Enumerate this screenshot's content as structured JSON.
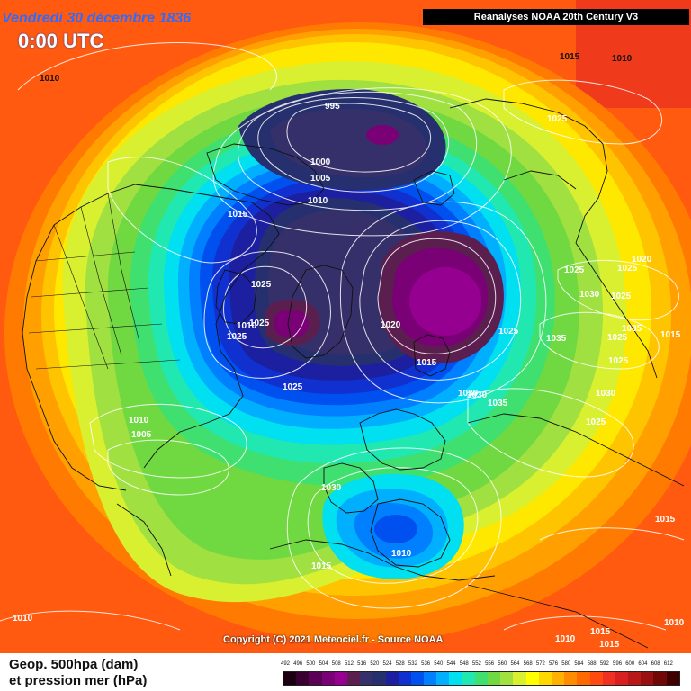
{
  "header": {
    "date_label": "Vendredi 30 décembre 1836",
    "time_label": "0:00 UTC",
    "source_label": "Reanalyses NOAA 20th Century V3"
  },
  "copyright": "Copyright (C) 2021 Meteociel.fr - Source NOAA",
  "legend": {
    "title_line1": "Geop. 500hpa (dam)",
    "title_line2": "et pression mer (hPa)",
    "scale_values": [
      "492",
      "496",
      "500",
      "504",
      "508",
      "512",
      "516",
      "520",
      "524",
      "528",
      "532",
      "536",
      "540",
      "544",
      "548",
      "552",
      "556",
      "560",
      "564",
      "568",
      "572",
      "576",
      "580",
      "584",
      "588",
      "592",
      "596",
      "600",
      "604",
      "608",
      "612"
    ],
    "scale_colors": [
      "#1a0010",
      "#3a0030",
      "#5a0055",
      "#7a0075",
      "#960090",
      "#5a1f4f",
      "#35306a",
      "#26306e",
      "#1c20a0",
      "#1030d0",
      "#0050f0",
      "#0080ff",
      "#00b0ff",
      "#00e0f0",
      "#20e8b0",
      "#40e070",
      "#70d840",
      "#a0e040",
      "#d8f030",
      "#ffff00",
      "#ffd800",
      "#ffb000",
      "#ff8c00",
      "#ff6a00",
      "#ff4a10",
      "#f03020",
      "#d82020",
      "#b81818",
      "#981010",
      "#700808",
      "#400000"
    ]
  },
  "isobar_labels": [
    {
      "text": "1010",
      "tone": "dark"
    },
    {
      "text": "995",
      "tone": "light"
    },
    {
      "text": "1000",
      "tone": "light"
    },
    {
      "text": "1005",
      "tone": "light"
    },
    {
      "text": "1010",
      "tone": "light"
    },
    {
      "text": "1015",
      "tone": "light"
    },
    {
      "text": "1015",
      "tone": "dark"
    },
    {
      "text": "1010",
      "tone": "dark"
    },
    {
      "text": "1025",
      "tone": "light"
    },
    {
      "text": "1025",
      "tone": "light"
    },
    {
      "text": "1010",
      "tone": "light"
    },
    {
      "text": "1025",
      "tone": "light"
    },
    {
      "text": "1025",
      "tone": "light"
    },
    {
      "text": "1020",
      "tone": "light"
    },
    {
      "text": "1015",
      "tone": "light"
    },
    {
      "text": "1025",
      "tone": "light"
    },
    {
      "text": "1030",
      "tone": "light"
    },
    {
      "text": "1035",
      "tone": "light"
    },
    {
      "text": "1025",
      "tone": "light"
    },
    {
      "text": "1030",
      "tone": "light"
    },
    {
      "text": "1035",
      "tone": "light"
    },
    {
      "text": "1020",
      "tone": "light"
    },
    {
      "text": "1025",
      "tone": "light"
    },
    {
      "text": "1025",
      "tone": "light"
    },
    {
      "text": "1035",
      "tone": "light"
    },
    {
      "text": "1030",
      "tone": "light"
    },
    {
      "text": "1025",
      "tone": "light"
    },
    {
      "text": "1025",
      "tone": "light"
    },
    {
      "text": "1025",
      "tone": "light"
    },
    {
      "text": "1030",
      "tone": "light"
    },
    {
      "text": "1025",
      "tone": "light"
    },
    {
      "text": "1015",
      "tone": "light"
    },
    {
      "text": "1010",
      "tone": "light"
    },
    {
      "text": "1005",
      "tone": "light"
    },
    {
      "text": "1030",
      "tone": "light"
    },
    {
      "text": "1010",
      "tone": "light"
    },
    {
      "text": "1015",
      "tone": "light"
    },
    {
      "text": "1015",
      "tone": "light"
    },
    {
      "text": "1010",
      "tone": "light"
    },
    {
      "text": "1010",
      "tone": "light"
    },
    {
      "text": "1015",
      "tone": "light"
    },
    {
      "text": "1010",
      "tone": "light"
    },
    {
      "text": "1015",
      "tone": "light"
    }
  ]
}
